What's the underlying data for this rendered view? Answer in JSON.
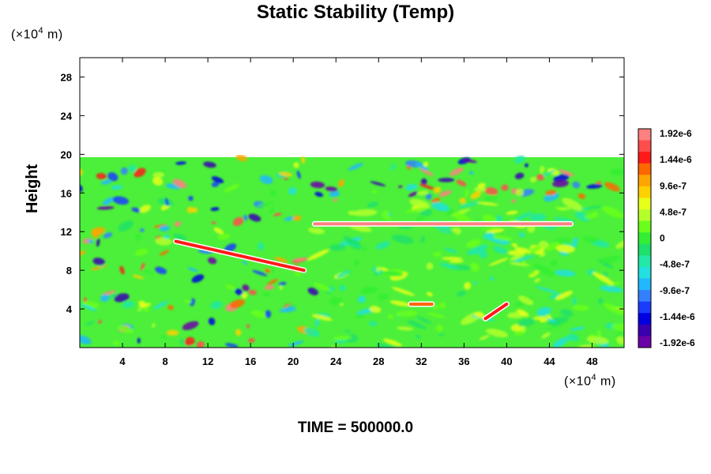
{
  "chart_data": {
    "type": "heatmap",
    "title": "Static Stability (Temp)",
    "ylabel": "Height",
    "xlabel": "",
    "x_unit": "(×10⁴ m)",
    "y_unit": "(×10⁴ m)",
    "footer": "TIME = 500000.0",
    "xlim": [
      0,
      51
    ],
    "ylim": [
      0,
      30
    ],
    "x_ticks": [
      4,
      8,
      12,
      16,
      20,
      24,
      28,
      32,
      36,
      40,
      44,
      48
    ],
    "y_ticks": [
      4,
      8,
      12,
      16,
      20,
      24,
      28
    ],
    "field_top": 19.7,
    "colorbar": {
      "labels": [
        "1.92e-6",
        "1.44e-6",
        "9.6e-7",
        "4.8e-7",
        "0",
        "-4.8e-7",
        "-9.6e-7",
        "-1.44e-6",
        "-1.92e-6"
      ],
      "min": -1.92e-06,
      "max": 1.92e-06,
      "colors": [
        "#ff8080",
        "#ff4d4d",
        "#ff1a1a",
        "#ff6600",
        "#ffa500",
        "#ffd000",
        "#e8ff1a",
        "#b4ff2a",
        "#6aff1a",
        "#33ee33",
        "#1ee06a",
        "#22e8a8",
        "#22e0e0",
        "#22b8ff",
        "#3380ff",
        "#1a3cff",
        "#0000e0",
        "#3a00b0",
        "#6a00a8"
      ]
    },
    "features": [
      {
        "name": "stable layer band",
        "x": [
          22,
          46
        ],
        "y": 12.8,
        "value": 1.9e-06
      },
      {
        "name": "sloped front",
        "x": [
          9,
          21
        ],
        "y": [
          11,
          8
        ],
        "value": 1.6e-06
      },
      {
        "name": "lower positive anomaly",
        "x": [
          31,
          33
        ],
        "y": 4.5,
        "value": 1.2e-06
      },
      {
        "name": "lower-right positive streak",
        "x": [
          38,
          40
        ],
        "y": [
          3,
          4.5
        ],
        "value": 1.6e-06
      }
    ]
  }
}
